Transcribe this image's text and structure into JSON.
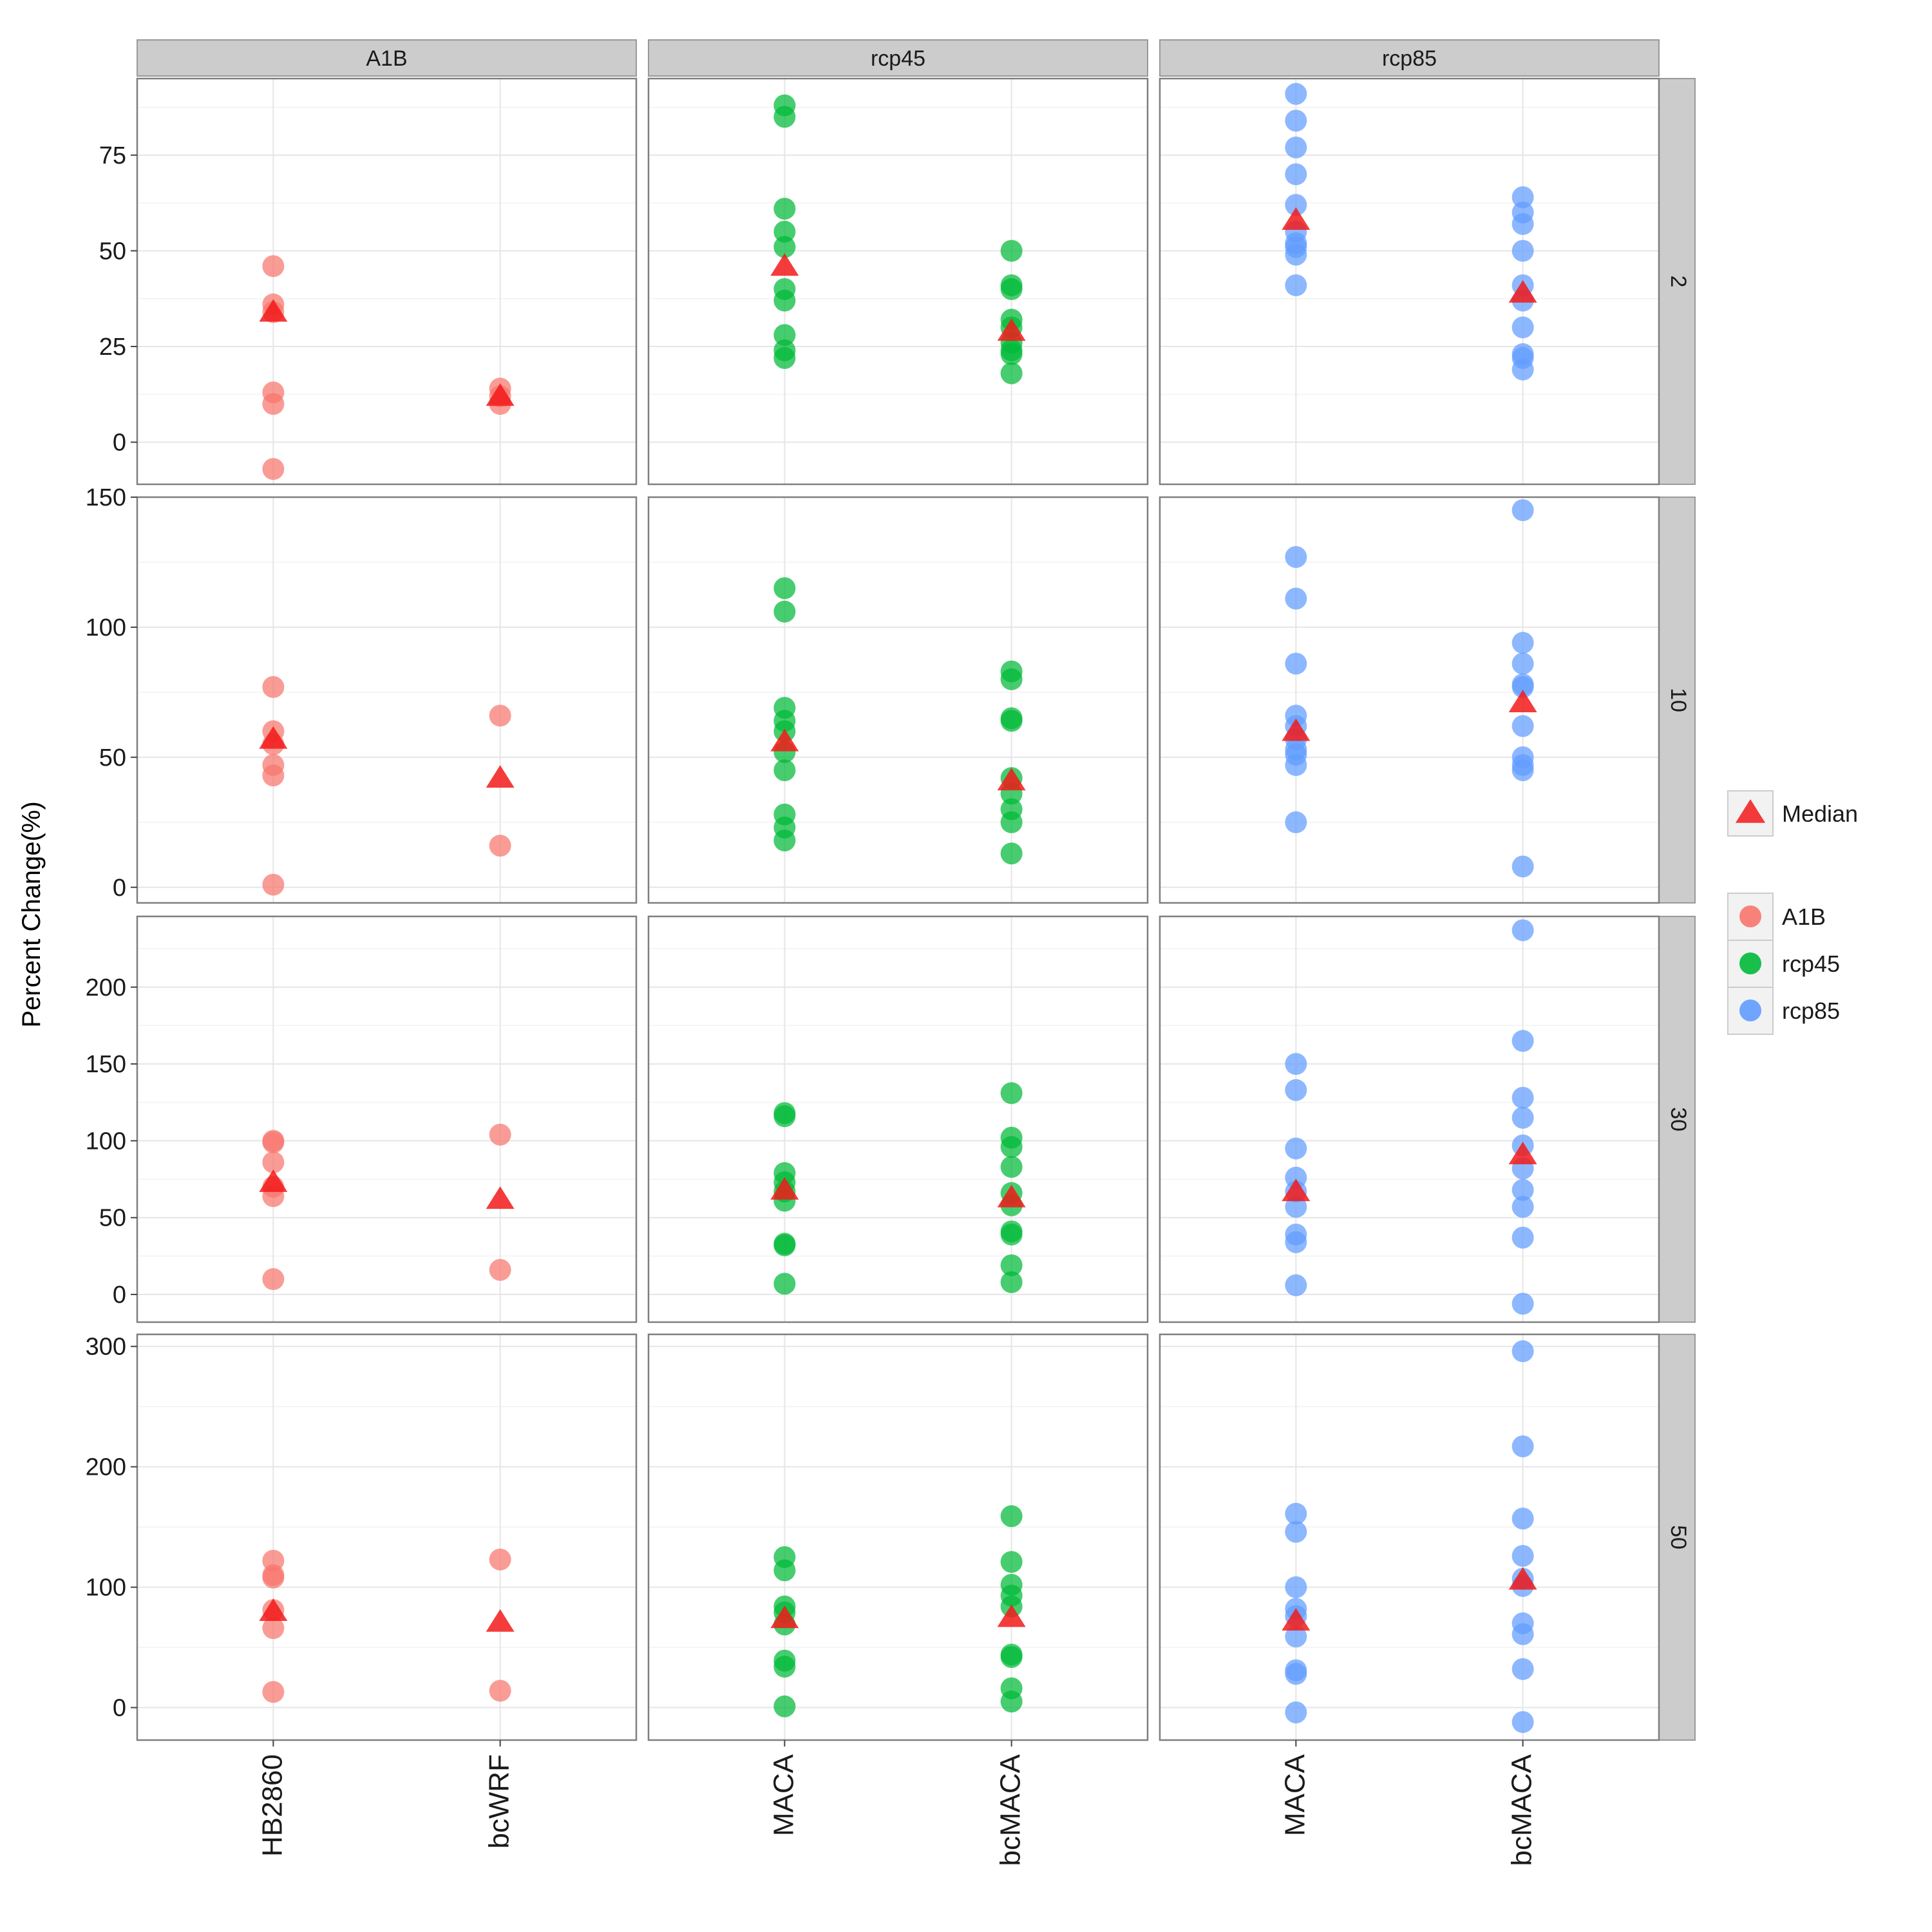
{
  "chart_data": {
    "type": "scatter",
    "ylabel": "Percent Change(%)",
    "xlabel": "",
    "column_facets": [
      "A1B",
      "rcp45",
      "rcp85"
    ],
    "row_facets": [
      "2",
      "10",
      "30",
      "50"
    ],
    "column_categories": [
      [
        "HB2860",
        "bcWRF"
      ],
      [
        "MACA",
        "bcMACA"
      ],
      [
        "MACA",
        "bcMACA"
      ]
    ],
    "row_yaxes": [
      {
        "ylim": [
          -11,
          95
        ],
        "ticks": [
          0,
          25,
          50,
          75
        ],
        "labels": [
          "0",
          "25",
          "50",
          "75"
        ]
      },
      {
        "ylim": [
          -6,
          150
        ],
        "ticks": [
          0,
          50,
          100,
          150
        ],
        "labels": [
          "0",
          "50",
          "100",
          "150"
        ]
      },
      {
        "ylim": [
          -18,
          246
        ],
        "ticks": [
          0,
          50,
          100,
          150,
          200
        ],
        "labels": [
          "0",
          "50",
          "100",
          "150",
          "200"
        ]
      },
      {
        "ylim": [
          -27,
          310
        ],
        "ticks": [
          0,
          100,
          200,
          300
        ],
        "labels": [
          "0",
          "100",
          "200",
          "300"
        ]
      }
    ],
    "series_colors": {
      "A1B": "#F8766D",
      "rcp45": "#00BA38",
      "rcp85": "#619CFF"
    },
    "median_color": "#F21A1A",
    "legend": {
      "position": "right",
      "median_label": "Median",
      "series": [
        "A1B",
        "rcp45",
        "rcp85"
      ]
    },
    "grid": true,
    "panels": [
      {
        "row": "2",
        "col": "A1B",
        "points": [
          [
            46,
            36,
            34,
            13,
            10,
            -7
          ],
          [
            14,
            12,
            10
          ]
        ],
        "medians": [
          34,
          12
        ]
      },
      {
        "row": "2",
        "col": "rcp45",
        "points": [
          [
            88,
            85,
            61,
            55,
            51,
            40,
            37,
            28,
            24,
            22
          ],
          [
            50,
            41,
            40,
            32,
            30,
            26,
            24,
            23,
            18
          ]
        ],
        "medians": [
          46,
          29
        ]
      },
      {
        "row": "2",
        "col": "rcp85",
        "points": [
          [
            91,
            84,
            77,
            70,
            62,
            55,
            52,
            51,
            49,
            41
          ],
          [
            64,
            60,
            57,
            50,
            41,
            37,
            30,
            23,
            22,
            19
          ]
        ],
        "medians": [
          58,
          39
        ]
      },
      {
        "row": "10",
        "col": "A1B",
        "points": [
          [
            77,
            60,
            55,
            47,
            43,
            1
          ],
          [
            66,
            16
          ]
        ],
        "medians": [
          57,
          42
        ]
      },
      {
        "row": "10",
        "col": "rcp45",
        "points": [
          [
            115,
            106,
            69,
            64,
            60,
            52,
            45,
            28,
            23,
            18
          ],
          [
            83,
            80,
            65,
            64,
            42,
            36,
            30,
            25,
            13
          ]
        ],
        "medians": [
          56,
          41
        ]
      },
      {
        "row": "10",
        "col": "rcp85",
        "points": [
          [
            127,
            111,
            86,
            66,
            62,
            57,
            53,
            51,
            47,
            25
          ],
          [
            145,
            94,
            86,
            78,
            77,
            62,
            50,
            47,
            45,
            8
          ]
        ],
        "medians": [
          60,
          71
        ]
      },
      {
        "row": "30",
        "col": "A1B",
        "points": [
          [
            100,
            99,
            86,
            70,
            64,
            10
          ],
          [
            104,
            16
          ]
        ],
        "medians": [
          73,
          62
        ]
      },
      {
        "row": "30",
        "col": "rcp45",
        "points": [
          [
            118,
            116,
            79,
            73,
            67,
            61,
            33,
            32,
            7
          ],
          [
            131,
            102,
            96,
            83,
            66,
            58,
            41,
            39,
            19,
            8
          ]
        ],
        "medians": [
          68,
          63
        ]
      },
      {
        "row": "30",
        "col": "rcp85",
        "points": [
          [
            150,
            133,
            95,
            76,
            67,
            57,
            39,
            34,
            6
          ],
          [
            237,
            165,
            128,
            115,
            97,
            82,
            68,
            57,
            37,
            -6
          ]
        ],
        "medians": [
          67,
          91
        ]
      },
      {
        "row": "50",
        "col": "A1B",
        "points": [
          [
            122,
            110,
            108,
            81,
            66,
            13
          ],
          [
            123,
            14
          ]
        ],
        "medians": [
          80,
          71
        ]
      },
      {
        "row": "50",
        "col": "rcp45",
        "points": [
          [
            125,
            114,
            84,
            79,
            69,
            39,
            34,
            1
          ],
          [
            159,
            121,
            102,
            93,
            84,
            44,
            42,
            16,
            5
          ]
        ],
        "medians": [
          74,
          75
        ]
      },
      {
        "row": "50",
        "col": "rcp85",
        "points": [
          [
            161,
            146,
            100,
            82,
            76,
            59,
            31,
            28,
            -4
          ],
          [
            296,
            217,
            157,
            126,
            107,
            101,
            70,
            61,
            32,
            -12
          ]
        ],
        "medians": [
          72,
          106
        ]
      }
    ]
  }
}
